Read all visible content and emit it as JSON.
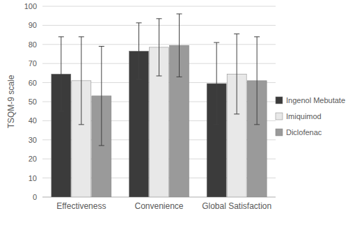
{
  "chart_data": {
    "type": "bar",
    "y_label": "TSQM-9 scale",
    "categories": [
      "Effectiveness",
      "Convenience",
      "Global Satisfaction"
    ],
    "series": [
      {
        "name": "Ingenol Mebutate",
        "color": "#3b3b3b",
        "values": [
          64.5,
          76.5,
          59.5
        ],
        "errors": [
          19.5,
          14.8,
          21.5
        ]
      },
      {
        "name": "Imiquimod",
        "color": "#e8e8e8",
        "values": [
          61,
          78.5,
          64.5
        ],
        "errors": [
          23,
          15,
          21
        ]
      },
      {
        "name": "Diclofenac",
        "color": "#9a9a9a",
        "values": [
          53,
          79.5,
          61
        ],
        "errors": [
          26,
          16.5,
          23
        ]
      }
    ],
    "ylim": [
      0,
      100
    ],
    "yticks": [
      0,
      10,
      20,
      30,
      40,
      50,
      60,
      70,
      80,
      90,
      100
    ],
    "grid": true,
    "legend": "right"
  }
}
